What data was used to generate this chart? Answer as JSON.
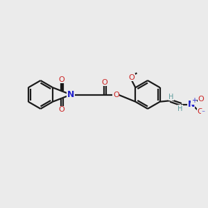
{
  "bg_color": "#ebebeb",
  "bond_color": "#1a1a1a",
  "bond_lw": 1.6,
  "N_color": "#2222cc",
  "O_color": "#cc2222",
  "H_color": "#5a9a9a",
  "figsize": [
    3.0,
    3.0
  ],
  "dpi": 100,
  "xlim": [
    0,
    10
  ],
  "ylim": [
    0,
    10
  ]
}
